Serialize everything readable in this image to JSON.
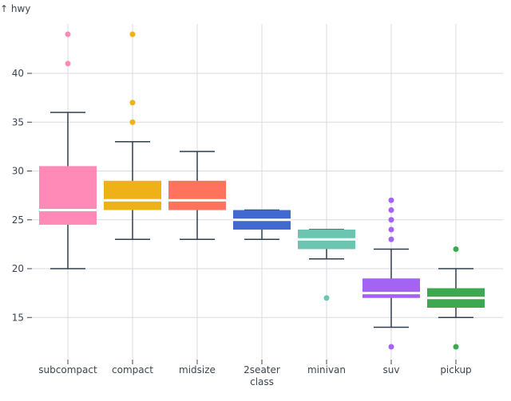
{
  "chart_data": {
    "type": "boxplot",
    "ylabel": "↑ hwy",
    "ylim": [
      10.8,
      45
    ],
    "yticks": [
      15,
      20,
      25,
      30,
      35,
      40
    ],
    "grid": true,
    "categories": [
      "subcompact",
      "compact",
      "midsize",
      "2seater",
      "minivan",
      "suv",
      "pickup"
    ],
    "category_labels": [
      [
        "subcompact"
      ],
      [
        "compact"
      ],
      [
        "midsize"
      ],
      [
        "2seater",
        "class"
      ],
      [
        "minivan"
      ],
      [
        "suv"
      ],
      [
        "pickup"
      ]
    ],
    "colors": [
      "#ff8ab7",
      "#efb118",
      "#ff725c",
      "#4269d0",
      "#6cc5b0",
      "#a463f2",
      "#3ca951"
    ],
    "boxes": [
      {
        "min": 20,
        "q1": 24.5,
        "median": 26,
        "q3": 30.5,
        "max": 36,
        "outliers": [
          41,
          44
        ]
      },
      {
        "min": 23,
        "q1": 26,
        "median": 27,
        "q3": 29,
        "max": 33,
        "outliers": [
          35,
          37,
          44
        ]
      },
      {
        "min": 23,
        "q1": 26,
        "median": 27,
        "q3": 29,
        "max": 32,
        "outliers": []
      },
      {
        "min": 23,
        "q1": 24,
        "median": 25,
        "q3": 26,
        "max": 26,
        "outliers": []
      },
      {
        "min": 21,
        "q1": 22,
        "median": 23,
        "q3": 24,
        "max": 24,
        "outliers": [
          17
        ]
      },
      {
        "min": 14,
        "q1": 17,
        "median": 17.5,
        "q3": 19,
        "max": 22,
        "outliers": [
          12,
          23,
          24,
          25,
          26,
          27
        ]
      },
      {
        "min": 15,
        "q1": 16,
        "median": 17,
        "q3": 18,
        "max": 20,
        "outliers": [
          12,
          22
        ]
      }
    ]
  }
}
